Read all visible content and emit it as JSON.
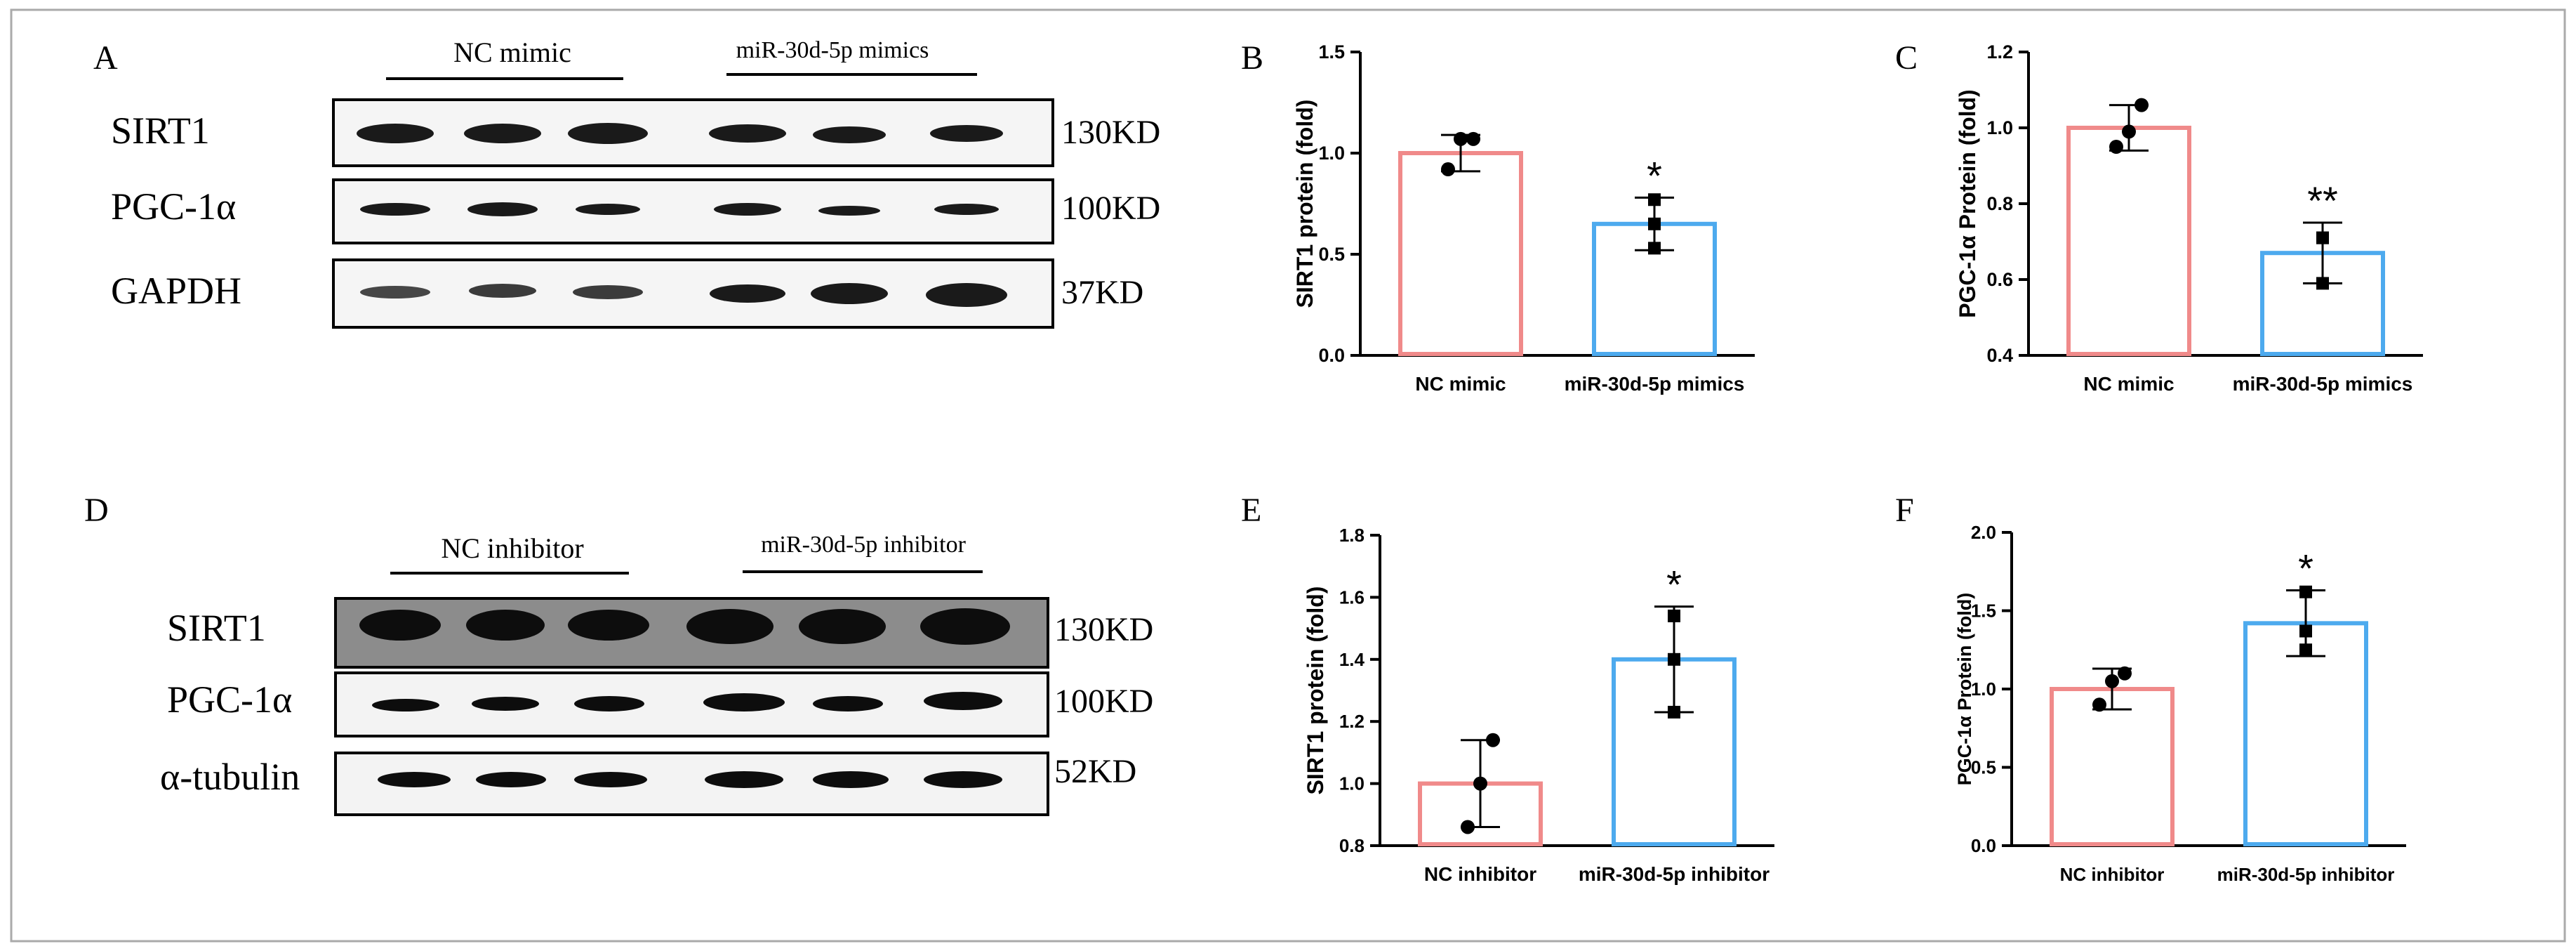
{
  "colors": {
    "nc": "#F08A8A",
    "mir": "#4DAAEE",
    "ink": "#000000",
    "frame": "#aaaaaa"
  },
  "panels": {
    "A": "A",
    "B": "B",
    "C": "C",
    "D": "D",
    "E": "E",
    "F": "F"
  },
  "blot_top": {
    "groups": [
      "NC mimic",
      "miR-30d-5p mimics"
    ],
    "rows": [
      {
        "name": "SIRT1",
        "size": "130KD"
      },
      {
        "name": "PGC-1α",
        "size": "100KD"
      },
      {
        "name": "GAPDH",
        "size": "37KD"
      }
    ]
  },
  "blot_bottom": {
    "groups": [
      "NC inhibitor",
      "miR-30d-5p inhibitor"
    ],
    "rows": [
      {
        "name": "SIRT1",
        "size": "130KD"
      },
      {
        "name": "PGC-1α",
        "size": "100KD"
      },
      {
        "name": "α-tubulin",
        "size": "52KD"
      }
    ]
  },
  "chart_data": [
    {
      "panel": "B",
      "type": "bar",
      "ylabel": "SIRT1 protein (fold)",
      "categories": [
        "NC mimic",
        "miR-30d-5p mimics"
      ],
      "values": [
        1.0,
        0.65
      ],
      "errors": [
        0.09,
        0.13
      ],
      "points": [
        [
          0.92,
          1.07,
          1.07
        ],
        [
          0.53,
          0.65,
          0.77
        ]
      ],
      "markers": [
        "circle",
        "square"
      ],
      "significance": [
        "",
        "*"
      ],
      "ylim": [
        0,
        1.5
      ],
      "ticks": [
        0.0,
        0.5,
        1.0,
        1.5
      ],
      "tick_labels": [
        "0.0",
        "0.5",
        "1.0",
        "1.5"
      ]
    },
    {
      "panel": "C",
      "type": "bar",
      "ylabel": "PGC-1α  Protein (fold)",
      "categories": [
        "NC mimic",
        "miR-30d-5p mimics"
      ],
      "values": [
        1.0,
        0.67
      ],
      "errors": [
        0.06,
        0.08
      ],
      "points": [
        [
          0.95,
          0.99,
          1.06
        ],
        [
          0.59,
          0.71,
          0.71
        ]
      ],
      "markers": [
        "circle",
        "square"
      ],
      "significance": [
        "",
        "**"
      ],
      "ylim": [
        0.4,
        1.2
      ],
      "ticks": [
        0.4,
        0.6,
        0.8,
        1.0,
        1.2
      ],
      "tick_labels": [
        "0.4",
        "0.6",
        "0.8",
        "1.0",
        "1.2"
      ]
    },
    {
      "panel": "E",
      "type": "bar",
      "ylabel": "SIRT1 protein (fold)",
      "categories": [
        "NC inhibitor",
        "miR-30d-5p inhibitor"
      ],
      "values": [
        1.0,
        1.4
      ],
      "errors": [
        0.14,
        0.17
      ],
      "points": [
        [
          0.86,
          1.0,
          1.14
        ],
        [
          1.23,
          1.4,
          1.54
        ]
      ],
      "markers": [
        "circle",
        "square"
      ],
      "significance": [
        "",
        "*"
      ],
      "ylim": [
        0.8,
        1.8
      ],
      "ticks": [
        0.8,
        1.0,
        1.2,
        1.4,
        1.6,
        1.8
      ],
      "tick_labels": [
        "0.8",
        "1.0",
        "1.2",
        "1.4",
        "1.6",
        "1.8"
      ]
    },
    {
      "panel": "F",
      "type": "bar",
      "ylabel": "PGC-1α  Protein (fold)",
      "categories": [
        "NC inhibitor",
        "miR-30d-5p inhibitor"
      ],
      "values": [
        1.0,
        1.42
      ],
      "errors": [
        0.13,
        0.21
      ],
      "points": [
        [
          0.9,
          1.05,
          1.1
        ],
        [
          1.25,
          1.37,
          1.62
        ]
      ],
      "markers": [
        "circle",
        "square"
      ],
      "significance": [
        "",
        "*"
      ],
      "ylim": [
        0,
        2.0
      ],
      "ticks": [
        0.0,
        0.5,
        1.0,
        1.5,
        2.0
      ],
      "tick_labels": [
        "0.0",
        "0.5",
        "1.0",
        "1.5",
        "2.0"
      ]
    }
  ]
}
